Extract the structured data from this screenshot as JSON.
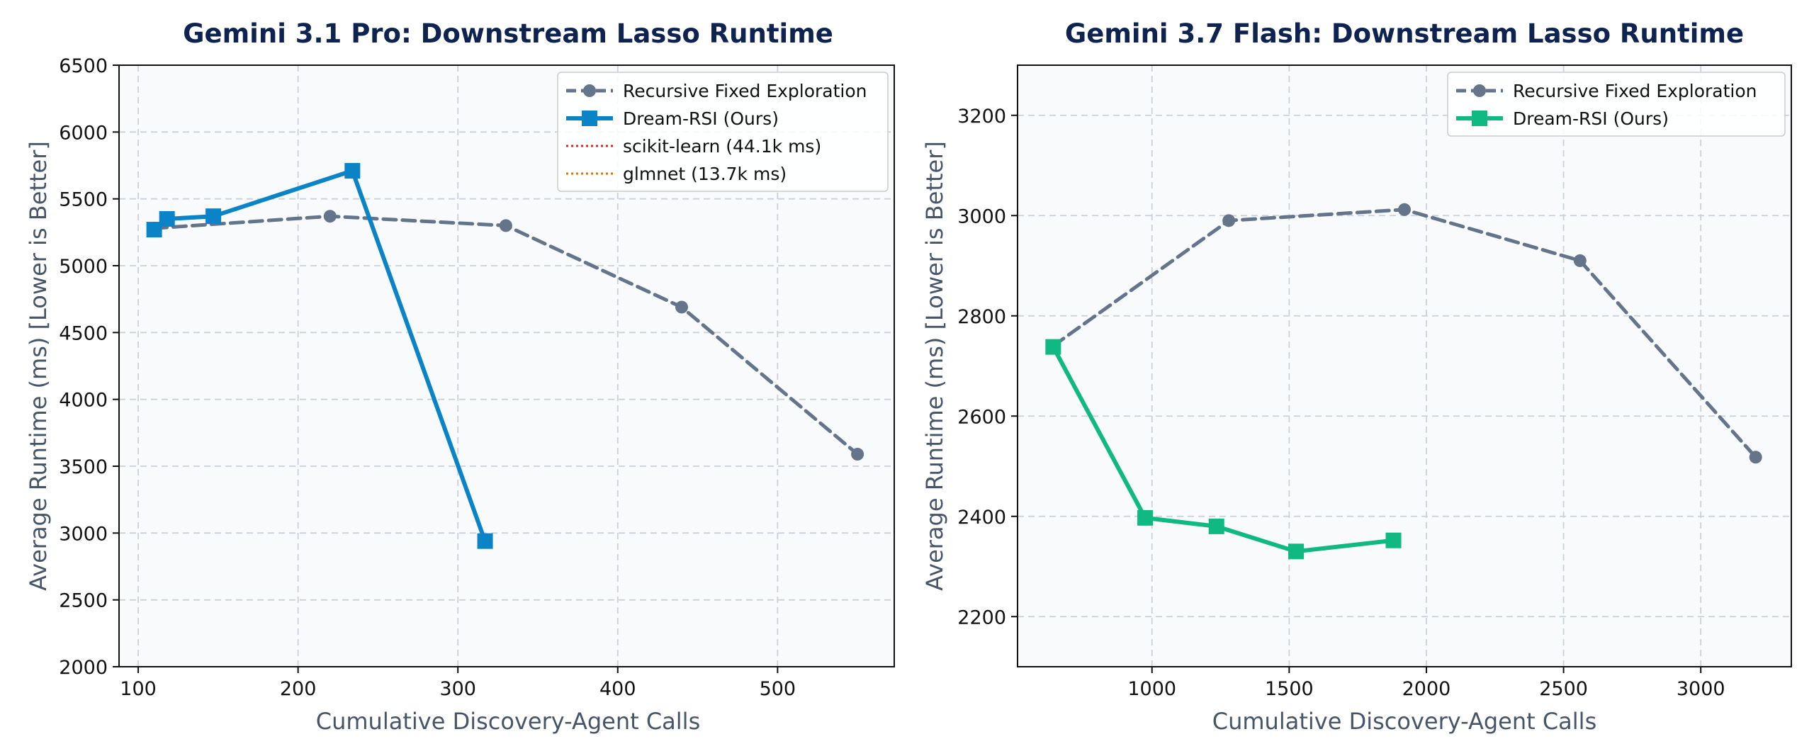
{
  "chart_data": [
    {
      "type": "line",
      "title": "Gemini 3.1 Pro: Downstream Lasso Runtime",
      "xlabel": "Cumulative Discovery-Agent Calls",
      "ylabel": "Average Runtime (ms) [Lower is Better]",
      "xlim": [
        88,
        573
      ],
      "ylim": [
        2000,
        6500
      ],
      "xticks": [
        100,
        200,
        300,
        400,
        500
      ],
      "yticks": [
        2000,
        2500,
        3000,
        3500,
        4000,
        4500,
        5000,
        5500,
        6000,
        6500
      ],
      "grid": true,
      "legend_position": "top-right",
      "series": [
        {
          "name": "Recursive Fixed Exploration",
          "color": "#64748b",
          "style": "dashed",
          "marker": "circle",
          "x": [
            110,
            220,
            330,
            440,
            550
          ],
          "y": [
            5280,
            5370,
            5300,
            4690,
            3590
          ]
        },
        {
          "name": "Dream-RSI (Ours)",
          "color": "#0a84c6",
          "style": "solid",
          "marker": "square",
          "x": [
            110,
            118,
            147,
            234,
            317
          ],
          "y": [
            5270,
            5350,
            5370,
            5710,
            2940
          ]
        }
      ],
      "reference_lines": [
        {
          "name": "scikit-learn (44.1k ms)",
          "value": 44100,
          "color": "#dc2626",
          "style": "dotted"
        },
        {
          "name": "glmnet (13.7k ms)",
          "value": 13700,
          "color": "#d97706",
          "style": "dotted"
        }
      ]
    },
    {
      "type": "line",
      "title": "Gemini 3.7 Flash: Downstream Lasso Runtime",
      "xlabel": "Cumulative Discovery-Agent Calls",
      "ylabel": "Average Runtime (ms) [Lower is Better]",
      "xlim": [
        510,
        3330
      ],
      "ylim": [
        2100,
        3300
      ],
      "xticks": [
        1000,
        1500,
        2000,
        2500,
        3000
      ],
      "yticks": [
        2200,
        2400,
        2600,
        2800,
        3000,
        3200
      ],
      "grid": true,
      "legend_position": "top-right",
      "series": [
        {
          "name": "Recursive Fixed Exploration",
          "color": "#64748b",
          "style": "dashed",
          "marker": "circle",
          "x": [
            640,
            1280,
            1920,
            2560,
            3200
          ],
          "y": [
            2740,
            2990,
            3012,
            2910,
            2518
          ]
        },
        {
          "name": "Dream-RSI (Ours)",
          "color": "#10b981",
          "style": "solid",
          "marker": "square",
          "x": [
            640,
            975,
            1235,
            1525,
            1880
          ],
          "y": [
            2738,
            2397,
            2380,
            2330,
            2352
          ]
        }
      ],
      "reference_lines": []
    }
  ]
}
